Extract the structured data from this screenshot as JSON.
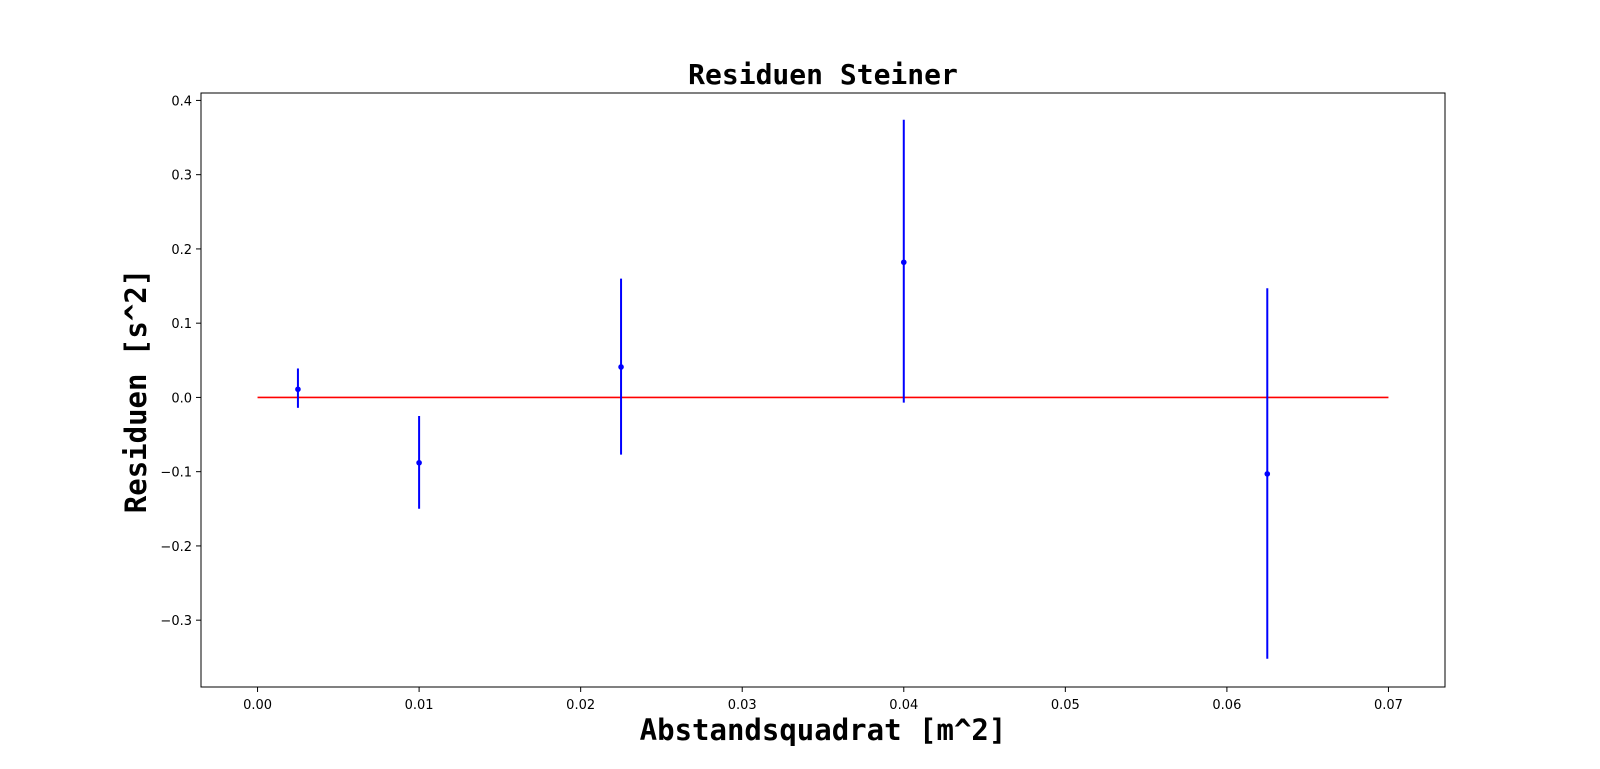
{
  "chart_data": {
    "type": "scatter",
    "title": "Residuen Steiner",
    "xlabel": "Abstandsquadrat [m^2]",
    "ylabel": "Residuen [s^2]",
    "xlim": [
      -0.0035,
      0.0735
    ],
    "ylim": [
      -0.39,
      0.41
    ],
    "xticks": [
      0.0,
      0.01,
      0.02,
      0.03,
      0.04,
      0.05,
      0.06,
      0.07
    ],
    "xtick_labels": [
      "0.00",
      "0.01",
      "0.02",
      "0.03",
      "0.04",
      "0.05",
      "0.06",
      "0.07"
    ],
    "yticks": [
      -0.3,
      -0.2,
      -0.1,
      0.0,
      0.1,
      0.2,
      0.3,
      0.4
    ],
    "ytick_labels": [
      "−0.3",
      "−0.2",
      "−0.1",
      "0.0",
      "0.1",
      "0.2",
      "0.3",
      "0.4"
    ],
    "grid": false,
    "series": [
      {
        "color": "#0000ff",
        "x": [
          0.0025,
          0.01,
          0.0225,
          0.04,
          0.0625
        ],
        "y": [
          0.011,
          -0.088,
          0.041,
          0.182,
          -0.103
        ],
        "yerr_low": [
          -0.014,
          -0.15,
          -0.077,
          -0.007,
          -0.352
        ],
        "yerr_high": [
          0.039,
          -0.025,
          0.16,
          0.374,
          0.147
        ]
      }
    ],
    "reference_line": {
      "color": "#ff0000",
      "x": [
        0.0,
        0.07
      ],
      "y": [
        0.0,
        0.0
      ]
    }
  }
}
